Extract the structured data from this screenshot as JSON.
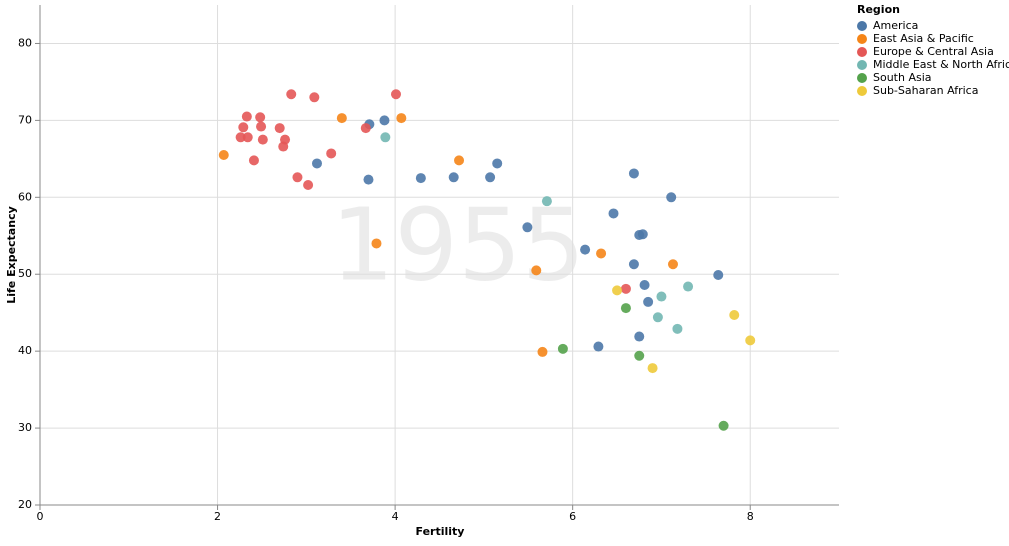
{
  "chart_data": {
    "type": "scatter",
    "x_label": "Fertility",
    "y_label": "Life Expectancy",
    "annotation": "1955",
    "legend_title": "Region",
    "legend": "top-right",
    "grid": true,
    "xlim": [
      0,
      9
    ],
    "ylim": [
      20,
      85
    ],
    "xticks": [
      0,
      2,
      4,
      6,
      8
    ],
    "yticks": [
      20,
      30,
      40,
      50,
      60,
      70,
      80
    ],
    "series": [
      {
        "name": "America",
        "color": "#4c78a8",
        "x": [
          3.71,
          3.88,
          3.12,
          3.7,
          4.29,
          4.66,
          5.07,
          5.15,
          6.69,
          7.11,
          5.49,
          6.46,
          6.75,
          6.79,
          6.14,
          6.69,
          7.64,
          6.81,
          6.85,
          6.75,
          6.29
        ],
        "values": [
          69.5,
          70.0,
          64.4,
          62.3,
          62.5,
          62.6,
          62.6,
          64.4,
          63.1,
          60.0,
          56.1,
          57.9,
          55.1,
          55.2,
          53.2,
          51.3,
          49.9,
          48.6,
          46.4,
          41.9,
          40.6
        ]
      },
      {
        "name": "East Asia & Pacific",
        "color": "#f58518",
        "x": [
          2.07,
          3.4,
          4.07,
          4.72,
          3.79,
          6.32,
          5.59,
          7.13,
          5.66
        ],
        "values": [
          65.5,
          70.3,
          70.3,
          64.8,
          54.0,
          52.7,
          50.5,
          51.3,
          39.9
        ]
      },
      {
        "name": "Europe & Central Asia",
        "color": "#e45756",
        "x": [
          2.33,
          2.48,
          2.29,
          2.49,
          2.7,
          2.26,
          2.34,
          2.51,
          2.76,
          2.74,
          2.83,
          3.09,
          4.01,
          3.28,
          2.41,
          3.67,
          2.9,
          3.02,
          6.6
        ],
        "values": [
          70.5,
          70.4,
          69.1,
          69.2,
          69.0,
          67.8,
          67.8,
          67.5,
          67.5,
          66.6,
          73.4,
          73.0,
          73.4,
          65.7,
          64.8,
          69.0,
          62.6,
          61.6,
          48.1
        ]
      },
      {
        "name": "Middle East & North Africa",
        "color": "#72b7b2",
        "x": [
          3.89,
          5.71,
          7.0,
          7.3,
          6.96,
          7.18
        ],
        "values": [
          67.8,
          59.5,
          47.1,
          48.4,
          44.4,
          42.9
        ]
      },
      {
        "name": "South Asia",
        "color": "#54a24b",
        "x": [
          6.6,
          5.89,
          6.75,
          7.7
        ],
        "values": [
          45.6,
          40.3,
          39.4,
          30.3
        ]
      },
      {
        "name": "Sub-Saharan Africa",
        "color": "#eeca3b",
        "x": [
          6.5,
          7.82,
          8.0,
          6.9
        ],
        "values": [
          47.9,
          44.7,
          41.4,
          37.8
        ]
      }
    ]
  }
}
